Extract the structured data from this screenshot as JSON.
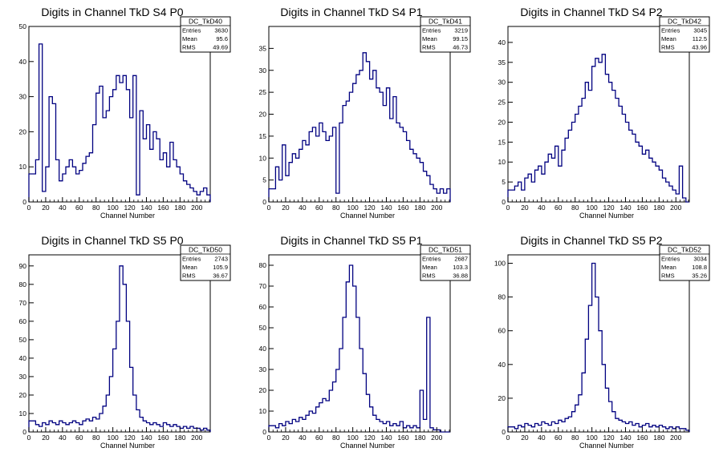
{
  "line_color": "#000080",
  "chart_data": [
    {
      "type": "histogram",
      "title": "Digits in Channel TkD S4 P0",
      "xlabel": "Channel Number",
      "ylabel": "",
      "xlim": [
        0,
        216
      ],
      "ylim": [
        0,
        50
      ],
      "xticks": [
        0,
        20,
        40,
        60,
        80,
        100,
        120,
        140,
        160,
        180,
        200
      ],
      "yticks": [
        0,
        10,
        20,
        30,
        40,
        50
      ],
      "stats": {
        "name": "DC_TkD40",
        "entries": "3630",
        "mean": "95.6",
        "rms": "49.69"
      },
      "series": [
        {
          "x": [
            0,
            8,
            12,
            16,
            20,
            24,
            28,
            32,
            36,
            40,
            44,
            48,
            52,
            56,
            60,
            64,
            68,
            72,
            76,
            80,
            84,
            88,
            92,
            96,
            100,
            104,
            108,
            112,
            116,
            120,
            124,
            128,
            132,
            136,
            140,
            144,
            148,
            152,
            156,
            160,
            164,
            168,
            172,
            176,
            180,
            184,
            188,
            192,
            196,
            200,
            204,
            208,
            212
          ],
          "y": [
            8,
            12,
            45,
            3,
            10,
            30,
            28,
            12,
            6,
            8,
            10,
            12,
            10,
            8,
            9,
            11,
            13,
            14,
            22,
            31,
            33,
            24,
            26,
            30,
            32,
            36,
            34,
            36,
            32,
            24,
            36,
            2,
            26,
            18,
            22,
            15,
            20,
            18,
            12,
            14,
            10,
            17,
            12,
            10,
            8,
            6,
            5,
            4,
            3,
            2,
            3,
            4,
            2
          ]
        }
      ]
    },
    {
      "type": "histogram",
      "title": "Digits in Channel TkD S4 P1",
      "xlabel": "Channel Number",
      "ylabel": "",
      "xlim": [
        0,
        216
      ],
      "ylim": [
        0,
        40
      ],
      "xticks": [
        0,
        20,
        40,
        60,
        80,
        100,
        120,
        140,
        160,
        180,
        200
      ],
      "yticks": [
        0,
        5,
        10,
        15,
        20,
        25,
        30,
        35
      ],
      "stats": {
        "name": "DC_TkD41",
        "entries": "3219",
        "mean": "99.15",
        "rms": "46.73"
      },
      "series": [
        {
          "x": [
            0,
            8,
            12,
            16,
            20,
            24,
            28,
            32,
            36,
            40,
            44,
            48,
            52,
            56,
            60,
            64,
            68,
            72,
            76,
            80,
            84,
            88,
            92,
            96,
            100,
            104,
            108,
            112,
            116,
            120,
            124,
            128,
            132,
            136,
            140,
            144,
            148,
            152,
            156,
            160,
            164,
            168,
            172,
            176,
            180,
            184,
            188,
            192,
            196,
            200,
            204,
            208,
            212
          ],
          "y": [
            3,
            8,
            5,
            13,
            6,
            9,
            11,
            10,
            12,
            14,
            13,
            16,
            17,
            15,
            18,
            16,
            14,
            15,
            17,
            2,
            18,
            22,
            23,
            25,
            27,
            29,
            30,
            34,
            32,
            28,
            30,
            26,
            25,
            22,
            26,
            19,
            24,
            18,
            17,
            16,
            14,
            12,
            11,
            10,
            9,
            7,
            6,
            4,
            3,
            2,
            3,
            2,
            3
          ]
        }
      ]
    },
    {
      "type": "histogram",
      "title": "Digits in Channel TkD S4 P2",
      "xlabel": "Channel Number",
      "ylabel": "",
      "xlim": [
        0,
        216
      ],
      "ylim": [
        0,
        44
      ],
      "xticks": [
        0,
        20,
        40,
        60,
        80,
        100,
        120,
        140,
        160,
        180,
        200
      ],
      "yticks": [
        0,
        5,
        10,
        15,
        20,
        25,
        30,
        35,
        40
      ],
      "stats": {
        "name": "DC_TkD42",
        "entries": "3045",
        "mean": "112.5",
        "rms": "43.96"
      },
      "series": [
        {
          "x": [
            0,
            8,
            12,
            16,
            20,
            24,
            28,
            32,
            36,
            40,
            44,
            48,
            52,
            56,
            60,
            64,
            68,
            72,
            76,
            80,
            84,
            88,
            92,
            96,
            100,
            104,
            108,
            112,
            116,
            120,
            124,
            128,
            132,
            136,
            140,
            144,
            148,
            152,
            156,
            160,
            164,
            168,
            172,
            176,
            180,
            184,
            188,
            192,
            196,
            200,
            204,
            208,
            212
          ],
          "y": [
            3,
            4,
            5,
            3,
            6,
            7,
            5,
            8,
            9,
            7,
            10,
            12,
            11,
            14,
            9,
            13,
            16,
            18,
            20,
            22,
            24,
            26,
            30,
            28,
            34,
            36,
            35,
            37,
            32,
            30,
            28,
            26,
            24,
            22,
            20,
            18,
            17,
            15,
            14,
            12,
            13,
            11,
            10,
            9,
            8,
            6,
            5,
            4,
            3,
            2,
            9,
            1,
            0
          ]
        }
      ]
    },
    {
      "type": "histogram",
      "title": "Digits in Channel TkD S5 P0",
      "xlabel": "Channel Number",
      "ylabel": "",
      "xlim": [
        0,
        216
      ],
      "ylim": [
        0,
        96
      ],
      "xticks": [
        0,
        20,
        40,
        60,
        80,
        100,
        120,
        140,
        160,
        180,
        200
      ],
      "yticks": [
        0,
        10,
        20,
        30,
        40,
        50,
        60,
        70,
        80,
        90
      ],
      "stats": {
        "name": "DC_TkD50",
        "entries": "2743",
        "mean": "105.9",
        "rms": "36.67"
      },
      "series": [
        {
          "x": [
            0,
            8,
            12,
            16,
            20,
            24,
            28,
            32,
            36,
            40,
            44,
            48,
            52,
            56,
            60,
            64,
            68,
            72,
            76,
            80,
            84,
            88,
            92,
            96,
            100,
            104,
            108,
            112,
            116,
            120,
            124,
            128,
            132,
            136,
            140,
            144,
            148,
            152,
            156,
            160,
            164,
            168,
            172,
            176,
            180,
            184,
            188,
            192,
            196,
            200,
            204,
            208,
            212
          ],
          "y": [
            6,
            4,
            3,
            5,
            4,
            6,
            5,
            4,
            6,
            5,
            4,
            5,
            6,
            5,
            4,
            6,
            7,
            6,
            8,
            7,
            10,
            14,
            20,
            30,
            45,
            60,
            90,
            80,
            60,
            35,
            20,
            12,
            8,
            6,
            5,
            4,
            5,
            4,
            3,
            5,
            4,
            3,
            4,
            3,
            2,
            3,
            2,
            3,
            2,
            2,
            1,
            2,
            1
          ]
        }
      ]
    },
    {
      "type": "histogram",
      "title": "Digits in Channel TkD S5 P1",
      "xlabel": "Channel Number",
      "ylabel": "",
      "xlim": [
        0,
        216
      ],
      "ylim": [
        0,
        85
      ],
      "xticks": [
        0,
        20,
        40,
        60,
        80,
        100,
        120,
        140,
        160,
        180,
        200
      ],
      "yticks": [
        0,
        10,
        20,
        30,
        40,
        50,
        60,
        70,
        80
      ],
      "stats": {
        "name": "DC_TkD51",
        "entries": "2687",
        "mean": "103.3",
        "rms": "36.88"
      },
      "series": [
        {
          "x": [
            0,
            8,
            12,
            16,
            20,
            24,
            28,
            32,
            36,
            40,
            44,
            48,
            52,
            56,
            60,
            64,
            68,
            72,
            76,
            80,
            84,
            88,
            92,
            96,
            100,
            104,
            108,
            112,
            116,
            120,
            124,
            128,
            132,
            136,
            140,
            144,
            148,
            152,
            156,
            160,
            164,
            168,
            172,
            176,
            180,
            184,
            188,
            192,
            196,
            200,
            204,
            208,
            212
          ],
          "y": [
            3,
            2,
            4,
            3,
            5,
            4,
            6,
            5,
            7,
            6,
            8,
            10,
            9,
            12,
            14,
            16,
            15,
            20,
            24,
            30,
            40,
            55,
            72,
            80,
            70,
            55,
            40,
            28,
            18,
            12,
            8,
            6,
            5,
            4,
            5,
            3,
            4,
            3,
            5,
            2,
            3,
            2,
            3,
            2,
            20,
            6,
            55,
            2,
            1,
            1,
            0,
            0,
            0
          ]
        }
      ]
    },
    {
      "type": "histogram",
      "title": "Digits in Channel TkD S5 P2",
      "xlabel": "Channel Number",
      "ylabel": "",
      "xlim": [
        0,
        216
      ],
      "ylim": [
        0,
        105
      ],
      "xticks": [
        0,
        20,
        40,
        60,
        80,
        100,
        120,
        140,
        160,
        180,
        200
      ],
      "yticks": [
        0,
        20,
        40,
        60,
        80,
        100
      ],
      "stats": {
        "name": "DC_TkD52",
        "entries": "3034",
        "mean": "108.8",
        "rms": "35.26"
      },
      "series": [
        {
          "x": [
            0,
            8,
            12,
            16,
            20,
            24,
            28,
            32,
            36,
            40,
            44,
            48,
            52,
            56,
            60,
            64,
            68,
            72,
            76,
            80,
            84,
            88,
            92,
            96,
            100,
            104,
            108,
            112,
            116,
            120,
            124,
            128,
            132,
            136,
            140,
            144,
            148,
            152,
            156,
            160,
            164,
            168,
            172,
            176,
            180,
            184,
            188,
            192,
            196,
            200,
            204,
            208,
            212
          ],
          "y": [
            3,
            2,
            4,
            3,
            5,
            4,
            3,
            5,
            4,
            6,
            5,
            4,
            6,
            5,
            7,
            6,
            8,
            9,
            12,
            16,
            22,
            35,
            55,
            75,
            100,
            80,
            60,
            40,
            26,
            18,
            12,
            8,
            7,
            6,
            5,
            6,
            4,
            5,
            3,
            4,
            5,
            3,
            4,
            3,
            4,
            3,
            2,
            3,
            2,
            3,
            2,
            2,
            1
          ]
        }
      ]
    }
  ]
}
